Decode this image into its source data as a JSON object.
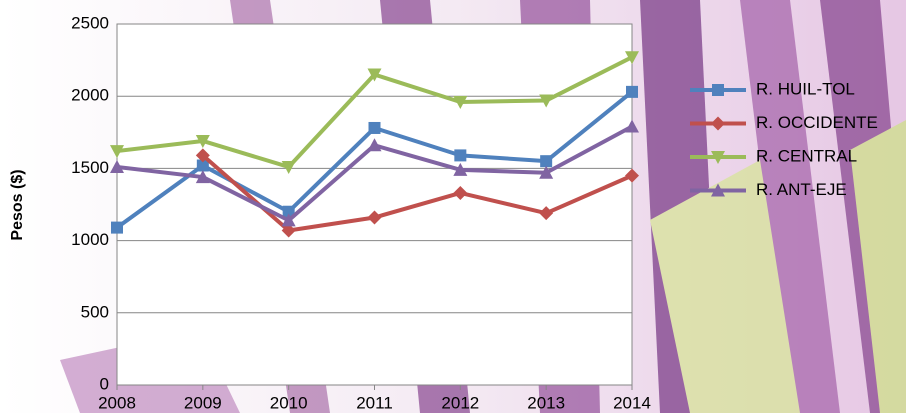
{
  "chart_data": {
    "type": "line",
    "y_label": "Pesos ($)",
    "x": [
      2008,
      2009,
      2010,
      2011,
      2012,
      2013,
      2014
    ],
    "xlim": [
      2008,
      2014
    ],
    "xticks": [
      2008,
      2009,
      2010,
      2011,
      2012,
      2013,
      2014
    ],
    "ylim": [
      0,
      2500
    ],
    "yticks": [
      0,
      500,
      1000,
      1500,
      2000,
      2500
    ],
    "grid": true,
    "legend": "right",
    "series": [
      {
        "name": "R. HUIL-TOL",
        "color": "#4f81bd",
        "marker": "square",
        "values": [
          1090,
          1520,
          1200,
          1780,
          1590,
          1550,
          2030
        ]
      },
      {
        "name": "R. OCCIDENTE",
        "color": "#c0504d",
        "marker": "diamond",
        "values": [
          null,
          1590,
          1070,
          1160,
          1330,
          1190,
          1450
        ]
      },
      {
        "name": "R. CENTRAL",
        "color": "#9bbb59",
        "marker": "triangle-down",
        "values": [
          1620,
          1690,
          1510,
          2150,
          1960,
          1970,
          2270
        ]
      },
      {
        "name": "R. ANT-EJE",
        "color": "#8064a2",
        "marker": "triangle-up",
        "values": [
          1510,
          1440,
          1140,
          1660,
          1490,
          1470,
          1790
        ]
      }
    ]
  }
}
